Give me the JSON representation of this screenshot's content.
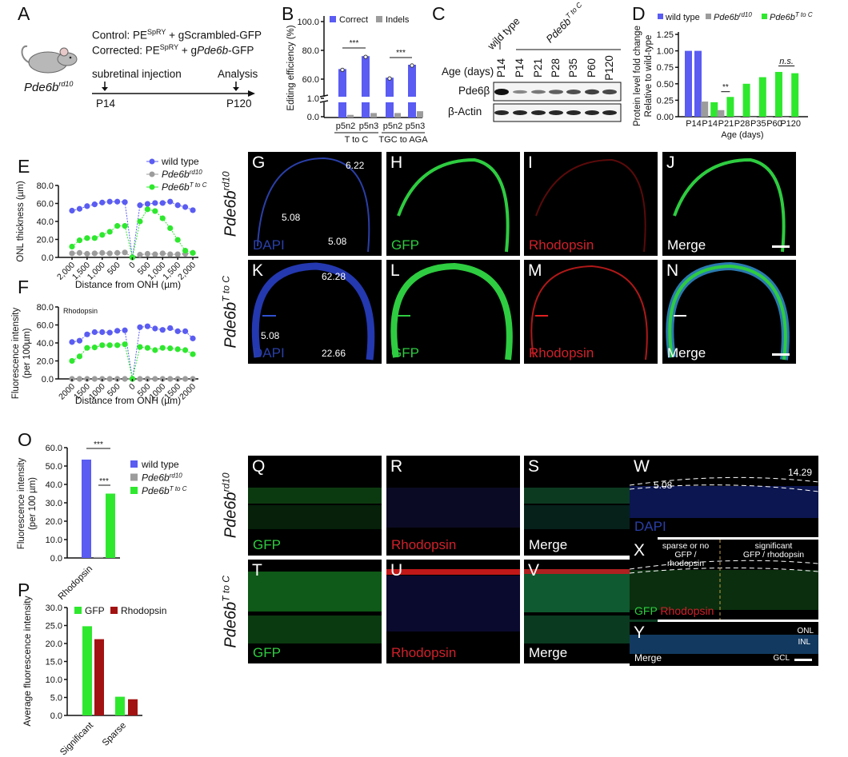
{
  "panel_labels": {
    "A": "A",
    "B": "B",
    "C": "C",
    "D": "D",
    "E": "E",
    "F": "F",
    "G": "G",
    "H": "H",
    "I": "I",
    "J": "J",
    "K": "K",
    "L": "L",
    "M": "M",
    "N": "N",
    "O": "O",
    "P": "P",
    "Q": "Q",
    "R": "R",
    "S": "S",
    "T": "T",
    "U": "U",
    "V": "V",
    "W": "W",
    "X": "X",
    "Y": "Y"
  },
  "panel_a": {
    "control_prefix": "Control: PE",
    "control_sup": "SpRY",
    "control_suffix": " + gScrambled-GFP",
    "corrected_prefix": "Corrected: PE",
    "corrected_sup": "SpRY",
    "corrected_mid": " + g",
    "corrected_gene": "Pde6b",
    "corrected_suffix": "-GFP",
    "mouse_gene": "Pde6b",
    "mouse_sup": "rd10",
    "injection": "subretinal injection",
    "analysis": "Analysis",
    "start": "P14",
    "end": "P120"
  },
  "panel_c": {
    "wild_type": "wild type",
    "mutant_gene": "Pde6b",
    "mutant_sup": "T to C",
    "age_label": "Age (days)",
    "ages": [
      "P14",
      "P14",
      "P21",
      "P28",
      "P35",
      "P60",
      "P120"
    ],
    "rows": [
      "Pde6β",
      "β-Actin"
    ],
    "band_intensity_pde6b": [
      1.0,
      0.25,
      0.35,
      0.5,
      0.6,
      0.7,
      0.65
    ],
    "band_intensity_actin": [
      1,
      1,
      1,
      1,
      1,
      1,
      1
    ]
  },
  "row_labels": {
    "gene": "Pde6b",
    "rd10": "rd10",
    "tc": "T to C"
  },
  "micrographs": {
    "G": {
      "stain": "DAPI",
      "nums": [
        "6.22",
        "5.08",
        "5.08"
      ]
    },
    "H": {
      "stain": "GFP"
    },
    "I": {
      "stain": "Rhodopsin"
    },
    "J": {
      "stain": "Merge"
    },
    "K": {
      "stain": "DAPI",
      "nums": [
        "62.28",
        "5.08",
        "22.66"
      ]
    },
    "L": {
      "stain": "GFP"
    },
    "M": {
      "stain": "Rhodopsin"
    },
    "N": {
      "stain": "Merge"
    },
    "Q": {
      "stain": "GFP"
    },
    "R": {
      "stain": "Rhodopsin"
    },
    "S": {
      "stain": "Merge"
    },
    "T": {
      "stain": "GFP"
    },
    "U": {
      "stain": "Rhodopsin"
    },
    "V": {
      "stain": "Merge"
    },
    "W": {
      "stain": "DAPI",
      "nums": [
        "5.08",
        "14.29"
      ]
    },
    "X": {
      "stain_gfp": "GFP",
      "stain_rho": "Rhodopsin",
      "left_note_1": "sparse or no",
      "left_note_2": "GFP / rhodopsin",
      "right_note_1": "significant",
      "right_note_2": "GFP / rhodopsin"
    },
    "Y": {
      "stain": "Merge"
    },
    "layers": [
      "ONL",
      "INL",
      "GCL"
    ]
  },
  "colors": {
    "wild_type": "#5a5cf2",
    "rd10": "#9c9c9c",
    "tc": "#2ee82e",
    "rhodopsin_bar": "#a31212",
    "dapi": "#2a3fa8",
    "gfp": "#2ecc40",
    "rhodopsin": "#d0202a"
  },
  "chart_data": [
    {
      "id": "B",
      "type": "bar",
      "ylabel": "Editing efficiency (%)",
      "yticks": [
        0,
        1,
        60,
        80,
        100
      ],
      "axis_break": [
        1,
        60
      ],
      "categories": [
        "p5n2",
        "p5n3",
        "p5n2",
        "p5n3"
      ],
      "groups": [
        {
          "label": "T to C",
          "categories": [
            0,
            1
          ]
        },
        {
          "label": "TGC to AGA",
          "categories": [
            2,
            3
          ]
        }
      ],
      "series": [
        {
          "name": "Correct",
          "color": "#5a5cf2",
          "values": [
            67,
            76,
            61,
            70
          ]
        },
        {
          "name": "Indels",
          "color": "#9c9c9c",
          "values": [
            0.1,
            0.2,
            0.2,
            0.3
          ]
        }
      ],
      "significance": [
        {
          "label": "***",
          "between": [
            0,
            1
          ]
        },
        {
          "label": "***",
          "between": [
            2,
            3
          ]
        }
      ],
      "legend": "top"
    },
    {
      "id": "D",
      "type": "bar",
      "ylabel": [
        "Protein level fold change",
        "Relative to wild-type"
      ],
      "xlabel": "Age (days)",
      "ylim": [
        0,
        1.25
      ],
      "yticks": [
        0,
        0.25,
        0.5,
        0.75,
        1.0,
        1.25
      ],
      "categories": [
        "P14",
        "P14",
        "P21",
        "P28",
        "P35",
        "P60",
        "P120"
      ],
      "series_def": [
        {
          "key": "wt",
          "name": "wild type",
          "color": "#5a5cf2"
        },
        {
          "key": "rd10",
          "name": "Pde6b",
          "sup": "rd10",
          "color": "#9c9c9c"
        },
        {
          "key": "tc",
          "name": "Pde6b",
          "sup": "T to C",
          "color": "#2ee82e"
        }
      ],
      "bars": [
        {
          "category": 0,
          "series": "wt",
          "value": 1.0
        },
        {
          "category": 0,
          "series": "wt",
          "value": 1.0
        },
        {
          "category": 1,
          "series": "rd10",
          "value": 0.23
        },
        {
          "category": 1,
          "series": "tc",
          "value": 0.22
        },
        {
          "category": 2,
          "series": "rd10",
          "value": 0.1
        },
        {
          "category": 2,
          "series": "tc",
          "value": 0.3
        },
        {
          "category": 3,
          "series": "rd10",
          "value": 0.0
        },
        {
          "category": 3,
          "series": "tc",
          "value": 0.5
        },
        {
          "category": 4,
          "series": "rd10",
          "value": 0.0
        },
        {
          "category": 4,
          "series": "tc",
          "value": 0.6
        },
        {
          "category": 5,
          "series": "rd10",
          "value": 0.0
        },
        {
          "category": 5,
          "series": "tc",
          "value": 0.68
        },
        {
          "category": 6,
          "series": "rd10",
          "value": 0.0
        },
        {
          "category": 6,
          "series": "tc",
          "value": 0.66
        }
      ],
      "significance": [
        {
          "label": "**",
          "between": [
            4,
            5
          ]
        },
        {
          "label": "n.s.",
          "between": [
            11,
            13
          ]
        }
      ],
      "legend": "top"
    },
    {
      "id": "E",
      "type": "line",
      "ylabel": "ONL thickness (µm)",
      "xlabel": "Distance from ONH (µm)",
      "ylim": [
        0,
        80
      ],
      "yticks": [
        0,
        20,
        40,
        60,
        80
      ],
      "x": [
        2000,
        1750,
        1500,
        1250,
        1000,
        750,
        500,
        250,
        0,
        250,
        500,
        750,
        1000,
        1250,
        1500,
        1750,
        2000
      ],
      "xtick_labels": [
        "2,000",
        "1,500",
        "1,000",
        "500",
        "0",
        "500",
        "1,000",
        "1,500",
        "2,000"
      ],
      "series": [
        {
          "key": "wt",
          "name": "wild type",
          "color": "#5a5cf2",
          "values": [
            52,
            54,
            57,
            59,
            61,
            62,
            62,
            61.5,
            0,
            58,
            59.5,
            60.5,
            60.5,
            62,
            58,
            56,
            52.5
          ]
        },
        {
          "key": "rd10",
          "name": "Pde6b",
          "sup": "rd10",
          "color": "#9c9c9c",
          "values": [
            4.5,
            5,
            4,
            4.5,
            5,
            4.5,
            5,
            5.5,
            0,
            3,
            4,
            3.5,
            4.5,
            3.5,
            3.5,
            4,
            5
          ]
        },
        {
          "key": "tc",
          "name": "Pde6b",
          "sup": "T to C",
          "color": "#2ee82e",
          "values": [
            12,
            19,
            21.5,
            21.5,
            25,
            28.5,
            35,
            35,
            0,
            40,
            53.5,
            51.5,
            43.5,
            32.5,
            19.5,
            7.5,
            5
          ]
        }
      ],
      "legend": "top-right"
    },
    {
      "id": "F",
      "type": "line",
      "title": "Rhodopsin",
      "ylabel": [
        "Fluorescence intensity",
        "(per 100µm)"
      ],
      "xlabel": "Distance from ONH (µm)",
      "ylim": [
        0,
        80
      ],
      "yticks": [
        0,
        20,
        40,
        60,
        80
      ],
      "x": [
        2000,
        1750,
        1500,
        1250,
        1000,
        750,
        500,
        250,
        0,
        250,
        500,
        750,
        1000,
        1250,
        1500,
        1750,
        2000
      ],
      "xtick_labels": [
        "2000",
        "1500",
        "1000",
        "500",
        "0",
        "500",
        "1000",
        "1500",
        "2000"
      ],
      "series": [
        {
          "key": "wt",
          "color": "#5a5cf2",
          "values": [
            41,
            42.5,
            49.5,
            52,
            52,
            51.5,
            53.5,
            54,
            0,
            57.5,
            58.5,
            56,
            54.5,
            56.5,
            53,
            53,
            45
          ]
        },
        {
          "key": "rd10",
          "color": "#9c9c9c",
          "values": [
            0,
            0,
            0,
            0,
            0,
            0,
            0,
            0,
            0,
            0,
            0,
            0,
            0,
            0,
            0,
            0,
            0
          ]
        },
        {
          "key": "tc",
          "color": "#2ee82e",
          "values": [
            20,
            25,
            34.5,
            35,
            37.5,
            37.5,
            37.5,
            38.5,
            0,
            35.5,
            34.5,
            32,
            34.5,
            34,
            33,
            32,
            27.5
          ]
        }
      ]
    },
    {
      "id": "O",
      "type": "bar",
      "ylabel": [
        "Fluorescence intensity",
        "(per 100 µm)"
      ],
      "ylim": [
        0,
        60
      ],
      "yticks": [
        0,
        10,
        20,
        30,
        40,
        50,
        60
      ],
      "categories": [
        "Rhodopsin"
      ],
      "series": [
        {
          "key": "wt",
          "name": "wild type",
          "color": "#5a5cf2",
          "values": [
            53.5
          ]
        },
        {
          "key": "rd10",
          "name": "Pde6b",
          "sup": "rd10",
          "color": "#9c9c9c",
          "values": [
            0.5
          ]
        },
        {
          "key": "tc",
          "name": "Pde6b",
          "sup": "T to C",
          "color": "#2ee82e",
          "values": [
            35
          ]
        }
      ],
      "significance": [
        {
          "label": "***",
          "between": [
            0,
            2
          ]
        },
        {
          "label": "***",
          "between": [
            1,
            2
          ]
        }
      ],
      "legend": "right"
    },
    {
      "id": "P",
      "type": "bar",
      "ylabel": "Average fluorescence intensity",
      "ylim": [
        0,
        30
      ],
      "yticks": [
        0,
        5,
        10,
        15,
        20,
        25,
        30
      ],
      "categories": [
        "Significant",
        "Sparse"
      ],
      "series": [
        {
          "name": "GFP",
          "color": "#2ee82e",
          "values": [
            24.8,
            5.2
          ]
        },
        {
          "name": "Rhodopsin",
          "color": "#a31212",
          "values": [
            21.2,
            4.5
          ]
        }
      ],
      "legend": "top"
    }
  ]
}
